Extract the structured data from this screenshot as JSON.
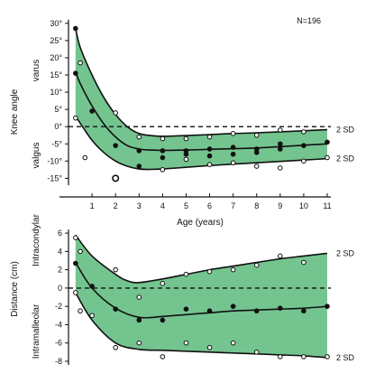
{
  "chart_data": [
    {
      "type": "area",
      "annotation": "N=196",
      "ylabel": "Knee angle",
      "ylabel_top": "varus",
      "ylabel_bottom": "valgus",
      "y_ticks": [
        {
          "v": 30,
          "label": "30°"
        },
        {
          "v": 25,
          "label": "25°"
        },
        {
          "v": 20,
          "label": "20°"
        },
        {
          "v": 15,
          "label": "15°"
        },
        {
          "v": 10,
          "label": "10°"
        },
        {
          "v": 5,
          "label": "5°"
        },
        {
          "v": 0,
          "label": "0°"
        },
        {
          "v": -5,
          "label": "-5°"
        },
        {
          "v": -10,
          "label": "-10°"
        },
        {
          "v": -15,
          "label": "-15°"
        }
      ],
      "ylim": [
        -17,
        31
      ],
      "band_label_upper": "2 SD",
      "band_label_lower": "2 SD",
      "upper_2sd": [
        [
          0.3,
          28.5
        ],
        [
          0.5,
          23
        ],
        [
          1,
          15
        ],
        [
          1.5,
          8.5
        ],
        [
          2,
          3.5
        ],
        [
          2.5,
          0
        ],
        [
          3,
          -2
        ],
        [
          3.5,
          -2.6
        ],
        [
          4,
          -2.8
        ],
        [
          5,
          -2.6
        ],
        [
          6,
          -2.3
        ],
        [
          7,
          -2
        ],
        [
          8,
          -1.8
        ],
        [
          9,
          -1.5
        ],
        [
          10,
          -1.2
        ],
        [
          11,
          -0.9
        ]
      ],
      "mean": [
        [
          0.3,
          16
        ],
        [
          0.5,
          12.5
        ],
        [
          1,
          6
        ],
        [
          1.5,
          0.8
        ],
        [
          2,
          -3
        ],
        [
          2.5,
          -5.5
        ],
        [
          3,
          -6.5
        ],
        [
          3.5,
          -6.8
        ],
        [
          4,
          -6.9
        ],
        [
          5,
          -6.8
        ],
        [
          6,
          -6.6
        ],
        [
          7,
          -6.4
        ],
        [
          8,
          -6.2
        ],
        [
          9,
          -5.8
        ],
        [
          10,
          -5.4
        ],
        [
          11,
          -5
        ]
      ],
      "lower_2sd": [
        [
          0.3,
          3
        ],
        [
          0.5,
          1
        ],
        [
          1,
          -4
        ],
        [
          1.5,
          -7.5
        ],
        [
          2,
          -10
        ],
        [
          2.5,
          -11.5
        ],
        [
          3,
          -12.3
        ],
        [
          3.5,
          -12.4
        ],
        [
          4,
          -12.3
        ],
        [
          5,
          -11.8
        ],
        [
          6,
          -11.3
        ],
        [
          7,
          -10.9
        ],
        [
          8,
          -10.5
        ],
        [
          9,
          -10.1
        ],
        [
          10,
          -9.7
        ],
        [
          11,
          -9.3
        ]
      ],
      "points_open": [
        [
          0.3,
          2.5
        ],
        [
          0.5,
          18.5
        ],
        [
          0.7,
          -9
        ],
        [
          2,
          4
        ],
        [
          3,
          -3
        ],
        [
          4,
          -3.5
        ],
        [
          4,
          -12.5
        ],
        [
          5,
          -3.5
        ],
        [
          5,
          -9.5
        ],
        [
          6,
          -3
        ],
        [
          6,
          -11
        ],
        [
          7,
          -2
        ],
        [
          7,
          -10.5
        ],
        [
          8,
          -2.5
        ],
        [
          8,
          -11.5
        ],
        [
          9,
          -1
        ],
        [
          9,
          -12
        ],
        [
          10,
          -1.5
        ],
        [
          10,
          -10
        ],
        [
          11,
          -9
        ]
      ],
      "points_filled": [
        [
          0.3,
          28.5
        ],
        [
          0.3,
          15.5
        ],
        [
          1,
          4.5
        ],
        [
          2,
          -5.5
        ],
        [
          3,
          -7
        ],
        [
          3,
          -11.5
        ],
        [
          4,
          -7
        ],
        [
          4,
          -9
        ],
        [
          5,
          -7
        ],
        [
          5,
          -8
        ],
        [
          6,
          -6.5
        ],
        [
          6,
          -8.5
        ],
        [
          7,
          -6
        ],
        [
          7,
          -8
        ],
        [
          8,
          -6.5
        ],
        [
          8,
          -7.5
        ],
        [
          9,
          -5
        ],
        [
          9,
          -6.5
        ],
        [
          10,
          -5.5
        ],
        [
          11,
          -4.5
        ]
      ],
      "points_large_open": [
        [
          2,
          -15
        ]
      ]
    },
    {
      "type": "area",
      "xlabel": "Age (years)",
      "x_ticks": [
        1,
        2,
        3,
        4,
        5,
        6,
        7,
        8,
        9,
        10,
        11
      ],
      "xlim": [
        0,
        11
      ],
      "ylabel": "Distance (cm)",
      "ylabel_top": "Intracondylar",
      "ylabel_bottom": "Intramalleolar",
      "y_ticks": [
        {
          "v": 6,
          "label": "6"
        },
        {
          "v": 4,
          "label": "4"
        },
        {
          "v": 2,
          "label": "2"
        },
        {
          "v": 0,
          "label": "0"
        },
        {
          "v": -2,
          "label": "-2"
        },
        {
          "v": -4,
          "label": "-4"
        },
        {
          "v": -6,
          "label": "-6"
        },
        {
          "v": -8,
          "label": "-8"
        }
      ],
      "ylim": [
        -8.4,
        6.8
      ],
      "band_label_upper": "2 SD",
      "band_label_lower": "2 SD",
      "upper_2sd": [
        [
          0.3,
          5.8
        ],
        [
          1,
          3.5
        ],
        [
          2,
          1.5
        ],
        [
          2.5,
          0.8
        ],
        [
          3,
          0.6
        ],
        [
          4,
          1
        ],
        [
          5,
          1.5
        ],
        [
          6,
          2
        ],
        [
          7,
          2.4
        ],
        [
          8,
          2.8
        ],
        [
          9,
          3.2
        ],
        [
          10,
          3.5
        ],
        [
          11,
          3.8
        ]
      ],
      "mean": [
        [
          0.3,
          2.8
        ],
        [
          1,
          0
        ],
        [
          2,
          -2.2
        ],
        [
          3,
          -3.2
        ],
        [
          4,
          -3.1
        ],
        [
          5,
          -2.9
        ],
        [
          6,
          -2.7
        ],
        [
          7,
          -2.5
        ],
        [
          8,
          -2.4
        ],
        [
          9,
          -2.3
        ],
        [
          10,
          -2.2
        ],
        [
          11,
          -2
        ]
      ],
      "lower_2sd": [
        [
          0.3,
          -0.5
        ],
        [
          1,
          -3.5
        ],
        [
          2,
          -6
        ],
        [
          3,
          -6.7
        ],
        [
          4,
          -6.8
        ],
        [
          5,
          -6.9
        ],
        [
          6,
          -7
        ],
        [
          7,
          -7.1
        ],
        [
          8,
          -7.2
        ],
        [
          9,
          -7.3
        ],
        [
          10,
          -7.4
        ],
        [
          11,
          -7.6
        ]
      ],
      "points_open": [
        [
          0.3,
          5.5
        ],
        [
          0.3,
          -0.5
        ],
        [
          0.5,
          4
        ],
        [
          0.5,
          -2.5
        ],
        [
          1,
          -3
        ],
        [
          2,
          2
        ],
        [
          2,
          -6.5
        ],
        [
          3,
          -1
        ],
        [
          3,
          -6
        ],
        [
          4,
          0.5
        ],
        [
          4,
          -7.5
        ],
        [
          5,
          1.5
        ],
        [
          5,
          -6
        ],
        [
          6,
          1.8
        ],
        [
          6,
          -6.5
        ],
        [
          7,
          2
        ],
        [
          7,
          -6
        ],
        [
          8,
          2.5
        ],
        [
          8,
          -7
        ],
        [
          9,
          3.5
        ],
        [
          9,
          -7.5
        ],
        [
          10,
          2.8
        ],
        [
          10,
          -7.5
        ],
        [
          11,
          -7.5
        ]
      ],
      "points_filled": [
        [
          0.3,
          2.7
        ],
        [
          1,
          0.2
        ],
        [
          2,
          -2.3
        ],
        [
          3,
          -3.5
        ],
        [
          4,
          -3.5
        ],
        [
          5,
          -2.3
        ],
        [
          6,
          -2.5
        ],
        [
          7,
          -2
        ],
        [
          8,
          -2.5
        ],
        [
          9,
          -2.2
        ],
        [
          10,
          -2.5
        ],
        [
          11,
          -2
        ]
      ]
    }
  ]
}
